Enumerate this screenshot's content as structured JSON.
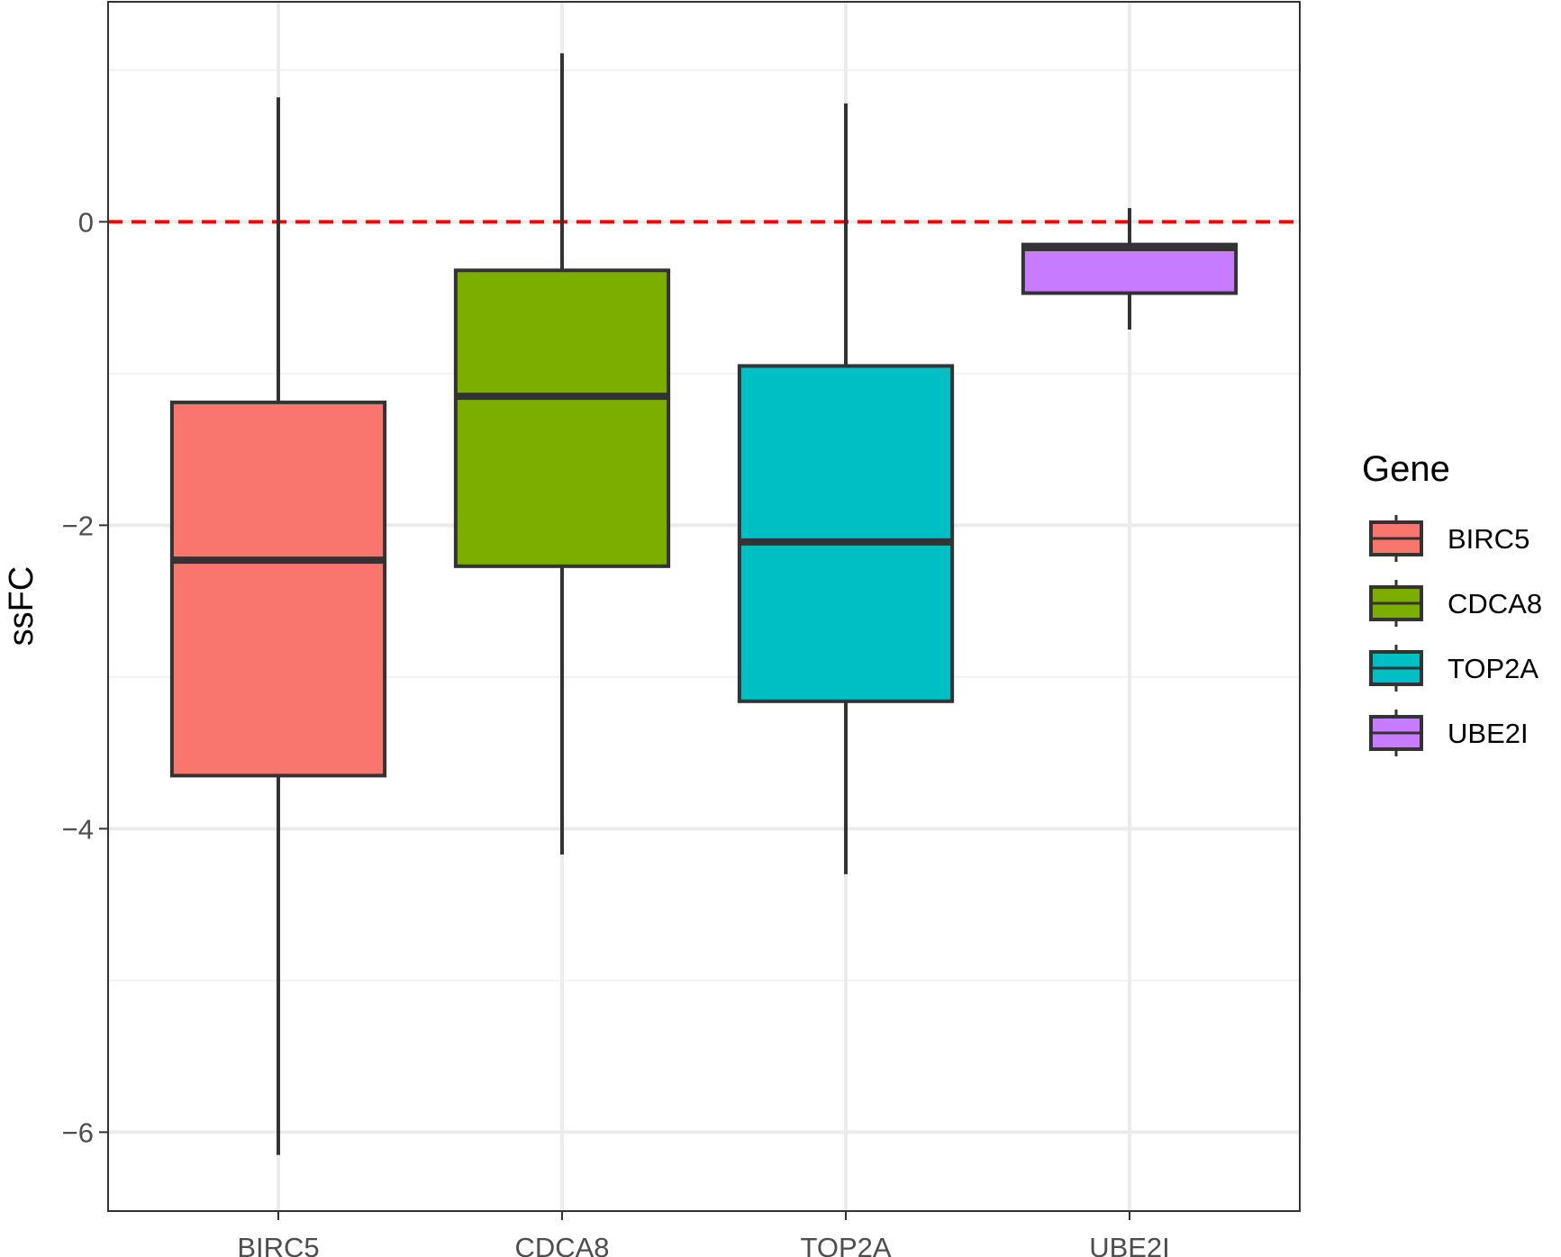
{
  "chart_data": {
    "type": "box",
    "xlabel": "",
    "ylabel": "ssFC",
    "ylim": [
      -6.52,
      1.45
    ],
    "yticks": [
      0,
      -2,
      -4,
      -6
    ],
    "ytick_labels": [
      "0",
      "−2",
      "−4",
      "−6"
    ],
    "y_minor_gridlines": [
      1,
      -1,
      -3,
      -5
    ],
    "grid": true,
    "reference_line": {
      "y": 0,
      "color": "#ff0000",
      "style": "dashed"
    },
    "categories": [
      "BIRC5",
      "CDCA8",
      "TOP2A",
      "UBE2I"
    ],
    "boxes": [
      {
        "category": "BIRC5",
        "whisker_low": -6.15,
        "q1": -3.65,
        "median": -2.23,
        "q3": -1.19,
        "whisker_high": 0.82,
        "color": "#F8766D"
      },
      {
        "category": "CDCA8",
        "whisker_low": -4.17,
        "q1": -2.27,
        "median": -1.15,
        "q3": -0.32,
        "whisker_high": 1.11,
        "color": "#7CAE00"
      },
      {
        "category": "TOP2A",
        "whisker_low": -4.3,
        "q1": -3.16,
        "median": -2.11,
        "q3": -0.95,
        "whisker_high": 0.78,
        "color": "#00BFC4"
      },
      {
        "category": "UBE2I",
        "whisker_low": -0.71,
        "q1": -0.47,
        "median": -0.17,
        "q3": -0.15,
        "whisker_high": 0.09,
        "color": "#C77CFF"
      }
    ],
    "legend": {
      "title": "Gene",
      "position": "right",
      "entries": [
        "BIRC5",
        "CDCA8",
        "TOP2A",
        "UBE2I"
      ]
    },
    "colors": {
      "box_outline": "#333333",
      "panel_border": "#333333",
      "grid_major": "#ebebeb",
      "grid_minor": "#f2f2f2"
    }
  }
}
